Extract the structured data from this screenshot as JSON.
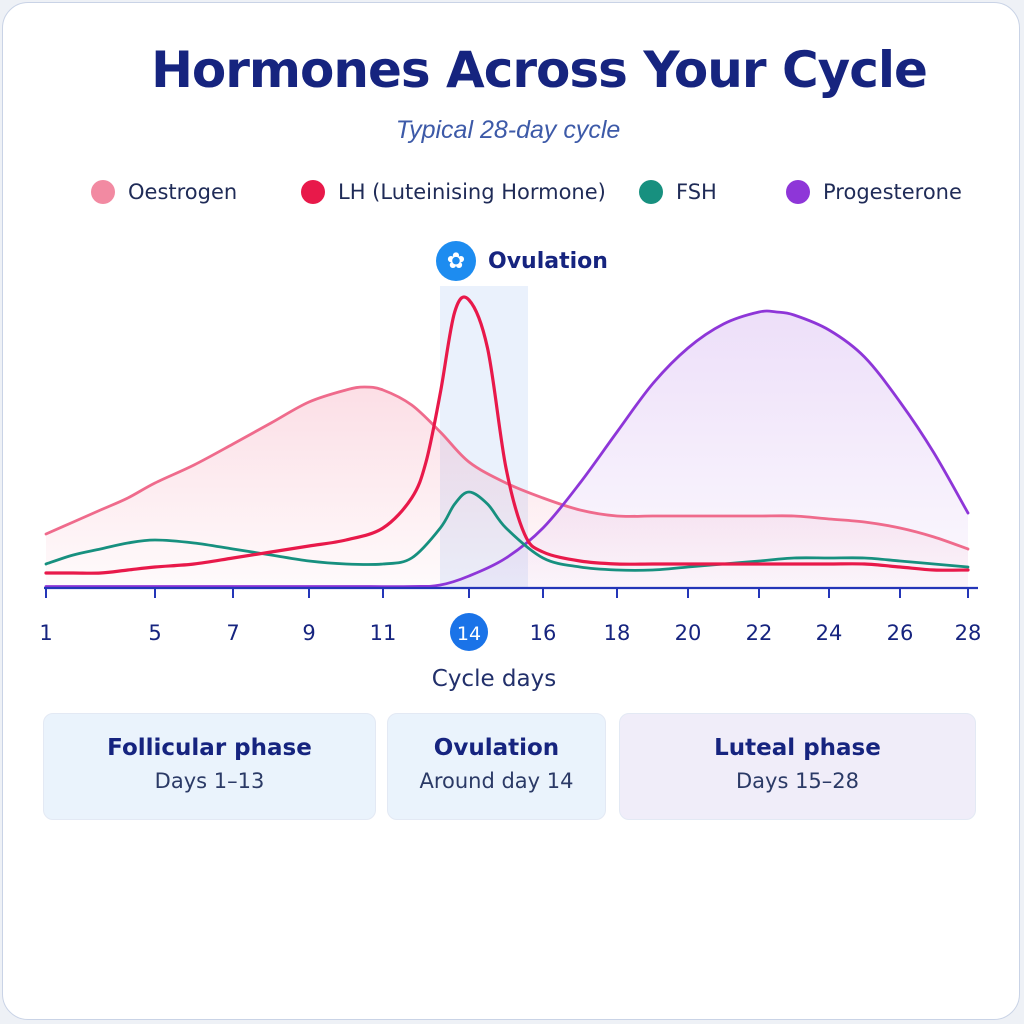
{
  "title": "Hormones Across Your Cycle",
  "subtitle": "Typical 28-day cycle",
  "ovulation_marker": {
    "label": "Ovulation",
    "icon": "flower-icon",
    "highlight_day": 14
  },
  "colors": {
    "oestrogen": "#ef6b8c",
    "lh": "#e8194a",
    "fsh": "#17907f",
    "progesterone": "#8e36d8",
    "baseline": "#2436b8",
    "axis_text": "#16247f",
    "highlight_tick": "#1a73e8"
  },
  "chart_data": {
    "type": "line",
    "xlabel": "Cycle days",
    "ylabel": "",
    "x_ticks": [
      1,
      5,
      7,
      9,
      11,
      14,
      16,
      18,
      20,
      22,
      24,
      26,
      28
    ],
    "highlighted_tick": 14,
    "ylim": [
      0,
      100
    ],
    "grid": false,
    "legend_position": "top",
    "series": [
      {
        "name": "Oestrogen",
        "key": "oestrogen",
        "filled": true,
        "x": [
          1,
          2,
          3,
          4,
          5,
          6,
          7,
          8,
          9,
          10,
          10.5,
          11,
          12,
          13,
          14,
          15,
          16,
          17,
          18,
          19,
          20,
          21,
          22,
          23,
          24,
          25,
          26,
          27,
          28
        ],
        "y": [
          18,
          22,
          26,
          30,
          35,
          41,
          48,
          55,
          62,
          66,
          67,
          66,
          61,
          52,
          42,
          35,
          30,
          26,
          24,
          24,
          24,
          24,
          24,
          24,
          23,
          22,
          20,
          17,
          13
        ]
      },
      {
        "name": "LH (Luteinising Hormone)",
        "key": "lh",
        "filled": false,
        "x": [
          1,
          2,
          3,
          4,
          5,
          6,
          7,
          8,
          9,
          10,
          11,
          12,
          12.5,
          13,
          13.5,
          14,
          14.5,
          15,
          15.5,
          16,
          17,
          18,
          19,
          20,
          21,
          22,
          23,
          24,
          25,
          26,
          27,
          28
        ],
        "y": [
          5,
          5,
          5,
          6,
          7,
          8,
          10,
          12,
          14,
          16,
          20,
          30,
          42,
          65,
          92,
          96,
          80,
          40,
          18,
          12,
          9,
          8,
          8,
          8,
          8,
          8,
          8,
          8,
          8,
          7,
          6,
          6
        ]
      },
      {
        "name": "FSH",
        "key": "fsh",
        "filled": false,
        "x": [
          1,
          2,
          3,
          4,
          5,
          6,
          7,
          8,
          9,
          10,
          11,
          12,
          13,
          13.5,
          14,
          14.5,
          15,
          16,
          17,
          18,
          19,
          20,
          21,
          22,
          23,
          24,
          25,
          26,
          27,
          28
        ],
        "y": [
          8,
          11,
          13,
          15,
          16,
          15,
          13,
          11,
          9,
          8,
          8,
          10,
          20,
          28,
          32,
          28,
          20,
          10,
          7,
          6,
          6,
          7,
          8,
          9,
          10,
          10,
          10,
          9,
          8,
          7
        ]
      },
      {
        "name": "Progesterone",
        "key": "progesterone",
        "filled": true,
        "x": [
          1,
          2,
          4,
          6,
          8,
          10,
          12,
          13,
          14,
          15,
          16,
          17,
          18,
          19,
          20,
          21,
          22,
          22.5,
          23,
          24,
          25,
          26,
          27,
          28
        ],
        "y": [
          0.5,
          0.5,
          0.5,
          0.5,
          0.5,
          0.5,
          0.5,
          1,
          4,
          10,
          20,
          35,
          52,
          68,
          80,
          88,
          92,
          92,
          91,
          86,
          77,
          62,
          45,
          25
        ]
      }
    ]
  },
  "phases": [
    {
      "title": "Follicular phase",
      "days": "Days 1–13"
    },
    {
      "title": "Ovulation",
      "days": "Around day 14"
    },
    {
      "title": "Luteal phase",
      "days": "Days 15–28"
    }
  ]
}
